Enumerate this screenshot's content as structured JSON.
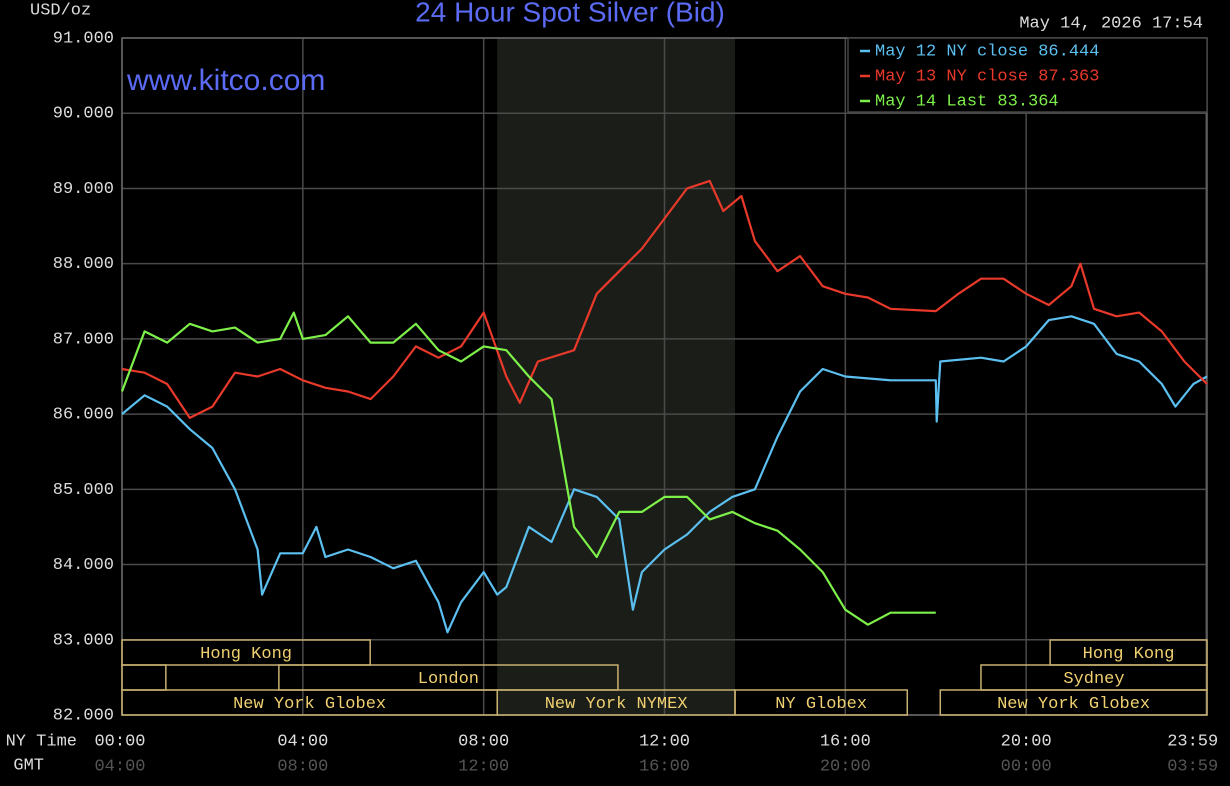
{
  "chart_data": {
    "type": "line",
    "title": "24 Hour Spot Silver (Bid)",
    "timestamp": "May 14, 2026 17:54",
    "watermark": "www.kitco.com",
    "y_label": "USD/oz",
    "x_label": "NY Time",
    "x2_label": "GMT",
    "xlim": [
      0,
      24
    ],
    "ylim": [
      82,
      91
    ],
    "grid": true,
    "legend": "top-right",
    "yticks": [
      {
        "value": 82,
        "label": "82.000"
      },
      {
        "value": 83,
        "label": "83.000"
      },
      {
        "value": 84,
        "label": "84.000"
      },
      {
        "value": 85,
        "label": "85.000"
      },
      {
        "value": 86,
        "label": "86.000"
      },
      {
        "value": 87,
        "label": "87.000"
      },
      {
        "value": 88,
        "label": "88.000"
      },
      {
        "value": 89,
        "label": "89.000"
      },
      {
        "value": 90,
        "label": "90.000"
      },
      {
        "value": 91,
        "label": "91.000"
      }
    ],
    "xticks": [
      {
        "value": 0,
        "label": "00:00"
      },
      {
        "value": 4,
        "label": "04:00"
      },
      {
        "value": 8,
        "label": "08:00"
      },
      {
        "value": 12,
        "label": "12:00"
      },
      {
        "value": 16,
        "label": "16:00"
      },
      {
        "value": 20,
        "label": "20:00"
      },
      {
        "value": 23.983,
        "label": "23:59"
      }
    ],
    "xticks_gmt": [
      "04:00",
      "08:00",
      "12:00",
      "16:00",
      "20:00",
      "00:00",
      "03:59"
    ],
    "shaded_x": [
      8.3,
      13.56
    ],
    "sessions": [
      {
        "label": "Hong Kong",
        "start": 0,
        "end": 5.49,
        "row": 0
      },
      {
        "label": null,
        "start": 0,
        "end": 0.97,
        "row": 1
      },
      {
        "label": "London",
        "start": 3.47,
        "end": 10.97,
        "row": 1
      },
      {
        "label": "New York Globex",
        "start": 0,
        "end": 8.3,
        "row": 2
      },
      {
        "label": "New York NYMEX",
        "start": 8.3,
        "end": 13.56,
        "row": 2
      },
      {
        "label": "NY Globex",
        "start": 13.56,
        "end": 17.37,
        "row": 2
      },
      {
        "label": "Hong Kong",
        "start": 20.53,
        "end": 24,
        "row": 0
      },
      {
        "label": "Sydney",
        "start": 19.0,
        "end": 24,
        "row": 1
      },
      {
        "label": "New York Globex",
        "start": 18.1,
        "end": 24,
        "row": 2
      }
    ],
    "series": [
      {
        "name": "May 12 NY close 86.444",
        "color": "#5bbff0",
        "x": [
          0,
          0.5,
          1,
          1.5,
          2,
          2.5,
          3,
          3.1,
          3.5,
          4,
          4.3,
          4.5,
          5,
          5.5,
          6,
          6.5,
          7,
          7.2,
          7.5,
          8,
          8.3,
          8.5,
          9,
          9.5,
          10,
          10.5,
          11,
          11.3,
          11.5,
          12,
          12.5,
          13,
          13.5,
          14,
          14.5,
          15,
          15.5,
          16,
          17,
          18,
          18.02,
          18.1,
          19,
          19.5,
          20,
          20.5,
          21,
          21.5,
          22,
          22.5,
          23,
          23.3,
          23.7,
          24
        ],
        "values": [
          86.0,
          86.25,
          86.1,
          85.8,
          85.55,
          85.0,
          84.2,
          83.6,
          84.15,
          84.15,
          84.5,
          84.1,
          84.2,
          84.1,
          83.95,
          84.05,
          83.5,
          83.1,
          83.5,
          83.9,
          83.6,
          83.7,
          84.5,
          84.3,
          85.0,
          84.9,
          84.6,
          83.4,
          83.9,
          84.2,
          84.4,
          84.7,
          84.9,
          85.0,
          85.7,
          86.3,
          86.6,
          86.5,
          86.45,
          86.45,
          85.9,
          86.7,
          86.75,
          86.7,
          86.9,
          87.25,
          87.3,
          87.2,
          86.8,
          86.7,
          86.4,
          86.1,
          86.4,
          86.5
        ]
      },
      {
        "name": "May 13 NY close 87.363",
        "color": "#e8392a",
        "x": [
          0,
          0.5,
          1,
          1.5,
          2,
          2.5,
          3,
          3.5,
          4,
          4.5,
          5,
          5.5,
          6,
          6.5,
          7,
          7.5,
          8,
          8.5,
          8.8,
          9.2,
          10,
          10.5,
          11,
          11.5,
          12,
          12.5,
          13,
          13.3,
          13.7,
          14,
          14.5,
          15,
          15.5,
          16,
          16.5,
          17,
          18,
          18.5,
          19,
          19.5,
          20,
          20.5,
          21,
          21.2,
          21.5,
          22,
          22.5,
          23,
          23.5,
          24
        ],
        "values": [
          86.6,
          86.55,
          86.4,
          85.95,
          86.1,
          86.55,
          86.5,
          86.6,
          86.45,
          86.35,
          86.3,
          86.2,
          86.5,
          86.9,
          86.75,
          86.9,
          87.35,
          86.5,
          86.15,
          86.7,
          86.85,
          87.6,
          87.9,
          88.2,
          88.6,
          89.0,
          89.1,
          88.7,
          88.9,
          88.3,
          87.9,
          88.1,
          87.7,
          87.6,
          87.55,
          87.4,
          87.37,
          87.6,
          87.8,
          87.8,
          87.6,
          87.45,
          87.7,
          88.0,
          87.4,
          87.3,
          87.35,
          87.1,
          86.7,
          86.4
        ]
      },
      {
        "name": "May 14 Last 83.364",
        "color": "#7ef04a",
        "x": [
          0,
          0.5,
          1,
          1.5,
          2,
          2.5,
          3,
          3.5,
          3.8,
          4,
          4.5,
          5,
          5.5,
          6,
          6.5,
          7,
          7.5,
          8,
          8.5,
          9,
          9.5,
          10,
          10.5,
          11,
          11.5,
          12,
          12.5,
          13,
          13.5,
          14,
          14.5,
          15,
          15.5,
          16,
          16.5,
          17,
          18
        ],
        "values": [
          86.3,
          87.1,
          86.95,
          87.2,
          87.1,
          87.15,
          86.95,
          87.0,
          87.35,
          87.0,
          87.05,
          87.3,
          86.95,
          86.95,
          87.2,
          86.85,
          86.7,
          86.9,
          86.85,
          86.5,
          86.2,
          84.5,
          84.1,
          84.7,
          84.7,
          84.9,
          84.9,
          84.6,
          84.7,
          84.55,
          84.45,
          84.2,
          83.9,
          83.4,
          83.2,
          83.36,
          83.36
        ]
      }
    ]
  }
}
